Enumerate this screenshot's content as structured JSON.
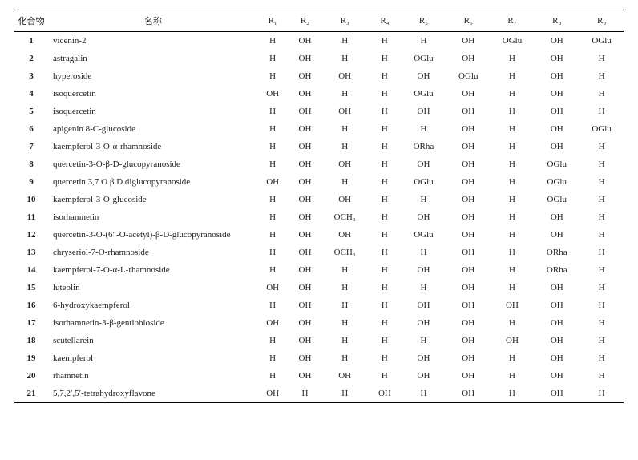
{
  "headers": {
    "compound": "化合物",
    "name": "名称",
    "r1": "R₁",
    "r2": "R₂",
    "r3": "R₃",
    "r4": "R₄",
    "r5": "R₅",
    "r6": "R₆",
    "r7": "R₇",
    "r8": "R₈",
    "r9": "R₉"
  },
  "rows": [
    {
      "id": "1",
      "name": "vicenin-2",
      "r": [
        "H",
        "OH",
        "H",
        "H",
        "H",
        "OH",
        "OGlu",
        "OH",
        "OGlu"
      ]
    },
    {
      "id": "2",
      "name": "astragalin",
      "r": [
        "H",
        "OH",
        "H",
        "H",
        "OGlu",
        "OH",
        "H",
        "OH",
        "H"
      ]
    },
    {
      "id": "3",
      "name": "hyperoside",
      "r": [
        "H",
        "OH",
        "OH",
        "H",
        "OH",
        "OGlu",
        "H",
        "OH",
        "H"
      ]
    },
    {
      "id": "4",
      "name": "isoquercetin",
      "r": [
        "OH",
        "OH",
        "H",
        "H",
        "OGlu",
        "OH",
        "H",
        "OH",
        "H"
      ]
    },
    {
      "id": "5",
      "name": "isoquercetin",
      "r": [
        "H",
        "OH",
        "OH",
        "H",
        "OH",
        "OH",
        "H",
        "OH",
        "H"
      ]
    },
    {
      "id": "6",
      "name": "apigenin 8-C-glucoside",
      "r": [
        "H",
        "OH",
        "H",
        "H",
        "H",
        "OH",
        "H",
        "OH",
        "OGlu"
      ]
    },
    {
      "id": "7",
      "name": "kaempferol-3-O-α-rhamnoside",
      "r": [
        "H",
        "OH",
        "H",
        "H",
        "ORha",
        "OH",
        "H",
        "OH",
        "H"
      ]
    },
    {
      "id": "8",
      "name": "quercetin-3-O-β-D-glucopyranoside",
      "r": [
        "H",
        "OH",
        "OH",
        "H",
        "OH",
        "OH",
        "H",
        "OGlu",
        "H"
      ]
    },
    {
      "id": "9",
      "name": "quercetin 3,7 O β D diglucopyranoside",
      "r": [
        "OH",
        "OH",
        "H",
        "H",
        "OGlu",
        "OH",
        "H",
        "OGlu",
        "H"
      ]
    },
    {
      "id": "10",
      "name": "kaempferol-3-O-glucoside",
      "r": [
        "H",
        "OH",
        "OH",
        "H",
        "H",
        "OH",
        "H",
        "OGlu",
        "H"
      ]
    },
    {
      "id": "11",
      "name": "isorhamnetin",
      "r": [
        "H",
        "OH",
        "OCH₃",
        "H",
        "OH",
        "OH",
        "H",
        "OH",
        "H"
      ]
    },
    {
      "id": "12",
      "name": "quercetin-3-O-(6″-O-acetyl)-β-D-glucopyranoside",
      "r": [
        "H",
        "OH",
        "OH",
        "H",
        "OGlu",
        "OH",
        "H",
        "OH",
        "H"
      ]
    },
    {
      "id": "13",
      "name": "chryseriol-7-O-rhamnoside",
      "r": [
        "H",
        "OH",
        "OCH₃",
        "H",
        "H",
        "OH",
        "H",
        "ORha",
        "H"
      ]
    },
    {
      "id": "14",
      "name": "kaempferol-7-O-α-L-rhamnoside",
      "r": [
        "H",
        "OH",
        "H",
        "H",
        "OH",
        "OH",
        "H",
        "ORha",
        "H"
      ]
    },
    {
      "id": "15",
      "name": "luteolin",
      "r": [
        "OH",
        "OH",
        "H",
        "H",
        "H",
        "OH",
        "H",
        "OH",
        "H"
      ]
    },
    {
      "id": "16",
      "name": "6-hydroxykaempferol",
      "r": [
        "H",
        "OH",
        "H",
        "H",
        "OH",
        "OH",
        "OH",
        "OH",
        "H"
      ]
    },
    {
      "id": "17",
      "name": "isorhamnetin-3-β-gentiobioside",
      "r": [
        "OH",
        "OH",
        "H",
        "H",
        "OH",
        "OH",
        "H",
        "OH",
        "H"
      ]
    },
    {
      "id": "18",
      "name": "scutellarein",
      "r": [
        "H",
        "OH",
        "H",
        "H",
        "H",
        "OH",
        "OH",
        "OH",
        "H"
      ]
    },
    {
      "id": "19",
      "name": "kaempferol",
      "r": [
        "H",
        "OH",
        "H",
        "H",
        "OH",
        "OH",
        "H",
        "OH",
        "H"
      ]
    },
    {
      "id": "20",
      "name": "rhamnetin",
      "r": [
        "H",
        "OH",
        "OH",
        "H",
        "OH",
        "OH",
        "H",
        "OH",
        "H"
      ]
    },
    {
      "id": "21",
      "name": "5,7,2′,5′-tetrahydroxyflavone",
      "r": [
        "OH",
        "H",
        "H",
        "OH",
        "H",
        "OH",
        "H",
        "OH",
        "H"
      ]
    }
  ]
}
